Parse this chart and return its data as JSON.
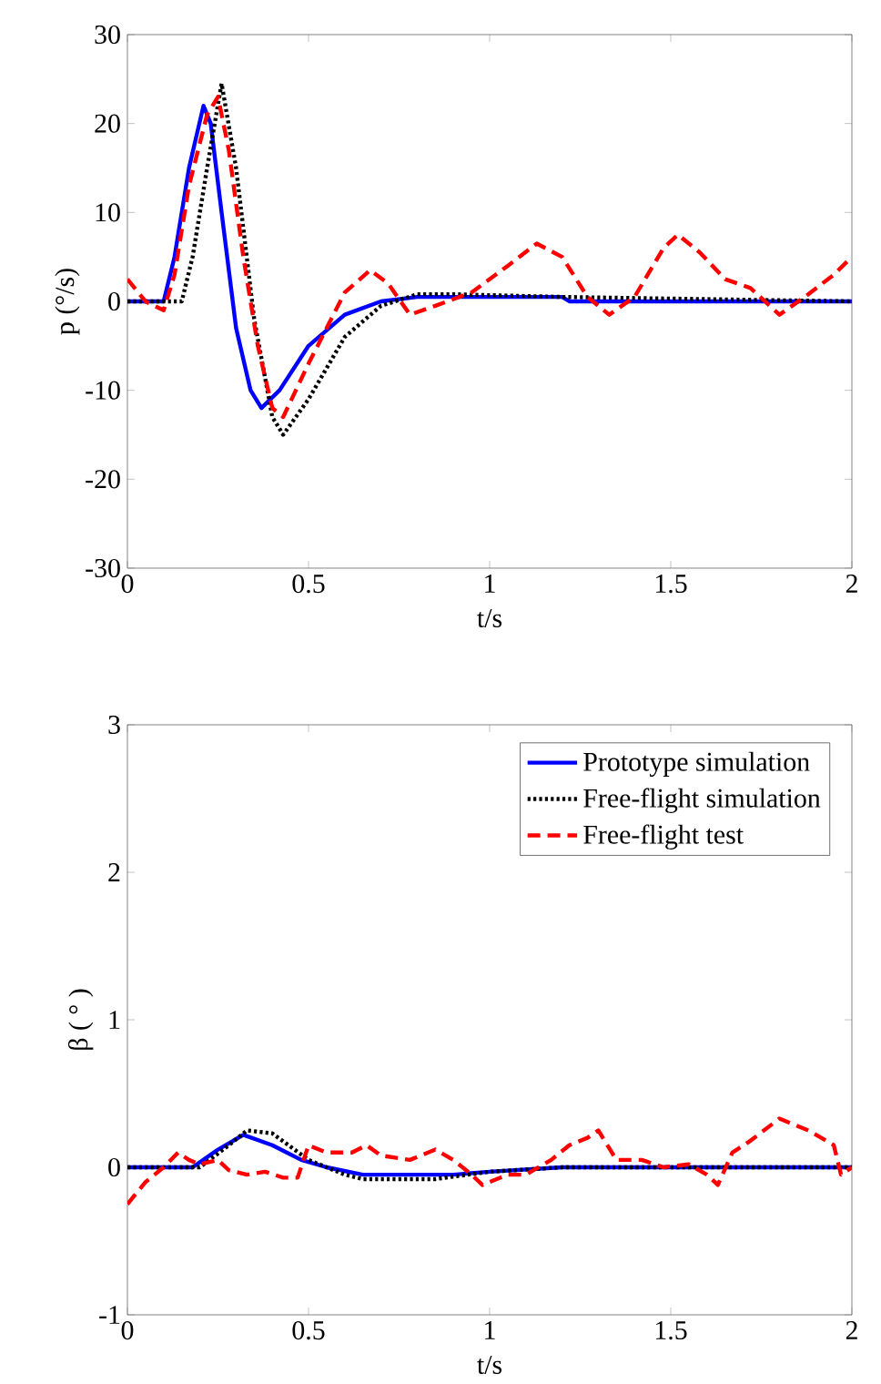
{
  "chart_data": [
    {
      "type": "line",
      "xlabel": "t/s",
      "ylabel": "p (°/s)",
      "xlim": [
        0,
        2
      ],
      "ylim": [
        -30,
        30
      ],
      "xticks": [
        0,
        0.5,
        1,
        1.5,
        2
      ],
      "yticks": [
        -30,
        -20,
        -10,
        0,
        10,
        20,
        30
      ],
      "series": [
        {
          "color": "#0000ff",
          "line_style": "solid",
          "x": [
            0,
            0.1,
            0.13,
            0.17,
            0.21,
            0.23,
            0.26,
            0.3,
            0.34,
            0.37,
            0.42,
            0.5,
            0.6,
            0.7,
            0.8,
            1.2,
            1.22,
            2
          ],
          "values": [
            0,
            0,
            5,
            15,
            22,
            20,
            10,
            -3,
            -10,
            -12,
            -10,
            -5,
            -1.5,
            0,
            0.5,
            0.5,
            0,
            0
          ]
        },
        {
          "color": "#000000",
          "line_style": "dotted",
          "x": [
            0,
            0.15,
            0.18,
            0.22,
            0.26,
            0.3,
            0.35,
            0.4,
            0.43,
            0.5,
            0.6,
            0.7,
            0.8,
            0.9,
            1.2,
            2
          ],
          "values": [
            0,
            0,
            5,
            15,
            24.5,
            15,
            -2,
            -13,
            -15,
            -11,
            -4,
            -0.5,
            0.8,
            0.8,
            0.5,
            0
          ]
        },
        {
          "color": "#ff0000",
          "line_style": "dashed",
          "x": [
            0,
            0.05,
            0.1,
            0.13,
            0.17,
            0.22,
            0.25,
            0.28,
            0.32,
            0.36,
            0.4,
            0.43,
            0.5,
            0.55,
            0.6,
            0.67,
            0.72,
            0.78,
            0.85,
            0.95,
            1.05,
            1.13,
            1.2,
            1.27,
            1.33,
            1.4,
            1.48,
            1.52,
            1.58,
            1.65,
            1.72,
            1.8,
            1.87,
            1.95,
            2
          ],
          "values": [
            2.5,
            0,
            -1,
            3,
            13,
            21,
            23,
            17,
            5,
            -5,
            -12,
            -13,
            -7,
            -3,
            1,
            3.5,
            2,
            -1.5,
            -0.5,
            1,
            4,
            6.5,
            5,
            0.5,
            -1.5,
            0.5,
            6,
            7.5,
            5.5,
            2.5,
            1.5,
            -1.5,
            0.5,
            3,
            5
          ]
        }
      ]
    },
    {
      "type": "line",
      "xlabel": "t/s",
      "ylabel": "β ( ° )",
      "xlim": [
        0,
        2
      ],
      "ylim": [
        -1,
        3
      ],
      "xticks": [
        0,
        0.5,
        1,
        1.5,
        2
      ],
      "yticks": [
        -1,
        0,
        1,
        2,
        3
      ],
      "legend": "top right",
      "series": [
        {
          "name": "Prototype simulation",
          "color": "#0000ff",
          "line_style": "solid",
          "x": [
            0,
            0.18,
            0.25,
            0.32,
            0.4,
            0.48,
            0.55,
            0.65,
            0.9,
            1.0,
            1.2,
            2
          ],
          "values": [
            0,
            0,
            0.12,
            0.22,
            0.15,
            0.05,
            0,
            -0.05,
            -0.05,
            -0.03,
            0,
            0
          ]
        },
        {
          "name": "Free-flight simulation",
          "color": "#000000",
          "line_style": "dotted",
          "x": [
            0,
            0.2,
            0.28,
            0.33,
            0.4,
            0.5,
            0.6,
            0.65,
            0.85,
            1.0,
            1.2,
            2
          ],
          "values": [
            0,
            0,
            0.15,
            0.25,
            0.23,
            0.05,
            -0.05,
            -0.08,
            -0.08,
            -0.03,
            0,
            0
          ]
        },
        {
          "name": "Free-flight test",
          "color": "#ff0000",
          "line_style": "dashed",
          "x": [
            0,
            0.05,
            0.1,
            0.14,
            0.17,
            0.2,
            0.25,
            0.28,
            0.33,
            0.38,
            0.43,
            0.47,
            0.5,
            0.55,
            0.62,
            0.66,
            0.7,
            0.78,
            0.85,
            0.9,
            0.95,
            0.98,
            1.05,
            1.1,
            1.17,
            1.22,
            1.27,
            1.3,
            1.35,
            1.42,
            1.48,
            1.55,
            1.6,
            1.63,
            1.67,
            1.72,
            1.8,
            1.88,
            1.95,
            1.97,
            2
          ],
          "values": [
            -0.25,
            -0.1,
            0,
            0.1,
            0.05,
            0.02,
            0.05,
            -0.02,
            -0.05,
            -0.03,
            -0.07,
            -0.07,
            0.15,
            0.1,
            0.1,
            0.15,
            0.08,
            0.05,
            0.12,
            0.05,
            -0.05,
            -0.12,
            -0.05,
            -0.05,
            0.05,
            0.15,
            0.2,
            0.25,
            0.05,
            0.05,
            0,
            0.02,
            -0.05,
            -0.12,
            0.1,
            0.18,
            0.33,
            0.25,
            0.15,
            -0.05,
            0
          ]
        }
      ]
    }
  ]
}
